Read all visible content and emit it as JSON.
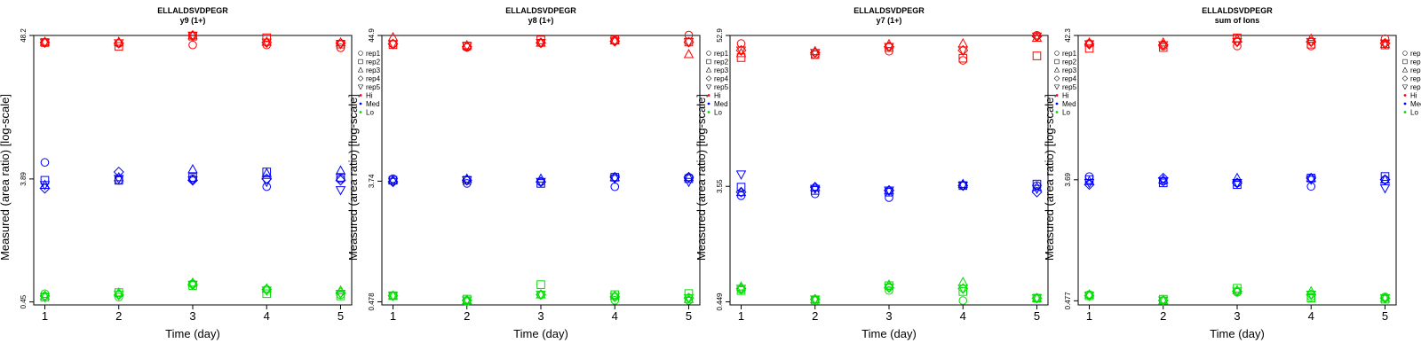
{
  "legend": {
    "replicates": [
      "rep1",
      "rep2",
      "rep3",
      "rep4",
      "rep5"
    ],
    "levels": [
      "Hi",
      "Med",
      "Lo"
    ],
    "colors": {
      "Hi": "#ff0000",
      "Med": "#0000ff",
      "Lo": "#00dd00"
    },
    "placement": "right-outside-top"
  },
  "chart_data": [
    {
      "type": "scatter",
      "title": "ELLALDSVDPEGR",
      "subtitle": "y9 (1+)",
      "xlabel": "Time (day)",
      "ylabel": "Measured (area ratio) [log-scale]",
      "log_scale": true,
      "xlim": [
        0.85,
        5.15
      ],
      "ylim": [
        0.427,
        48.2
      ],
      "xticks": [
        "1",
        "2",
        "3",
        "4",
        "5"
      ],
      "yticks": [
        {
          "value": 0.45,
          "label": "0.45"
        },
        {
          "value": 3.89,
          "label": "3.89"
        },
        {
          "value": 48.2,
          "label": "48.2"
        }
      ],
      "x": [
        1,
        2,
        3,
        4,
        5
      ],
      "series": [
        {
          "level": "Hi",
          "replicate": "rep1",
          "values": [
            42.6,
            41.9,
            40.8,
            40.8,
            38.8
          ]
        },
        {
          "level": "Hi",
          "replicate": "rep2",
          "values": [
            42.6,
            39.8,
            47.6,
            46.3,
            41.4
          ]
        },
        {
          "level": "Hi",
          "replicate": "rep3",
          "values": [
            43.1,
            43.1,
            48.2,
            43.1,
            42.6
          ]
        },
        {
          "level": "Hi",
          "replicate": "rep4",
          "values": [
            42.6,
            42.1,
            48.2,
            42.6,
            42.1
          ]
        },
        {
          "level": "Hi",
          "replicate": "rep5",
          "values": [
            42.6,
            42.1,
            48.2,
            42.6,
            41.4
          ]
        },
        {
          "level": "Med",
          "replicate": "rep1",
          "values": [
            5.2,
            3.8,
            3.9,
            3.4,
            3.9
          ]
        },
        {
          "level": "Med",
          "replicate": "rep2",
          "values": [
            3.8,
            3.8,
            4.0,
            4.4,
            4.0
          ]
        },
        {
          "level": "Med",
          "replicate": "rep3",
          "values": [
            3.5,
            4.0,
            4.6,
            4.3,
            4.5
          ]
        },
        {
          "level": "Med",
          "replicate": "rep4",
          "values": [
            3.3,
            4.4,
            3.8,
            3.9,
            3.8
          ]
        },
        {
          "level": "Med",
          "replicate": "rep5",
          "values": [
            3.5,
            3.9,
            3.8,
            3.7,
            3.2
          ]
        },
        {
          "level": "Lo",
          "replicate": "rep1",
          "values": [
            0.52,
            0.49,
            0.62,
            0.56,
            0.51
          ]
        },
        {
          "level": "Lo",
          "replicate": "rep2",
          "values": [
            0.49,
            0.53,
            0.6,
            0.52,
            0.5
          ]
        },
        {
          "level": "Lo",
          "replicate": "rep3",
          "values": [
            0.5,
            0.53,
            0.63,
            0.57,
            0.55
          ]
        },
        {
          "level": "Lo",
          "replicate": "rep4",
          "values": [
            0.5,
            0.51,
            0.61,
            0.56,
            0.53
          ]
        },
        {
          "level": "Lo",
          "replicate": "rep5",
          "values": [
            0.49,
            0.51,
            0.61,
            0.55,
            0.52
          ]
        }
      ]
    },
    {
      "type": "scatter",
      "title": "ELLALDSVDPEGR",
      "subtitle": "y8 (1+)",
      "xlabel": "Time (day)",
      "ylabel": "Measured (area ratio) [log-scale]",
      "log_scale": true,
      "xlim": [
        0.85,
        5.15
      ],
      "ylim": [
        0.453,
        44.9
      ],
      "xticks": [
        "1",
        "2",
        "3",
        "4",
        "5"
      ],
      "yticks": [
        {
          "value": 0.478,
          "label": "0.478"
        },
        {
          "value": 3.74,
          "label": "3.74"
        },
        {
          "value": 44.9,
          "label": "44.9"
        }
      ],
      "x": [
        1,
        2,
        3,
        4,
        5
      ],
      "series": [
        {
          "level": "Hi",
          "replicate": "rep1",
          "values": [
            38.8,
            36.6,
            39.6,
            41.1,
            45.2
          ]
        },
        {
          "level": "Hi",
          "replicate": "rep2",
          "values": [
            38.4,
            37.5,
            41.6,
            41.6,
            40.1
          ]
        },
        {
          "level": "Hi",
          "replicate": "rep3",
          "values": [
            43.5,
            38.0,
            39.6,
            41.1,
            32.6
          ]
        },
        {
          "level": "Hi",
          "replicate": "rep4",
          "values": [
            38.8,
            37.0,
            39.6,
            40.6,
            40.1
          ]
        },
        {
          "level": "Hi",
          "replicate": "rep5",
          "values": [
            38.8,
            37.5,
            39.6,
            40.6,
            40.1
          ]
        },
        {
          "level": "Med",
          "replicate": "rep1",
          "values": [
            3.9,
            3.6,
            3.7,
            3.4,
            4.0
          ]
        },
        {
          "level": "Med",
          "replicate": "rep2",
          "values": [
            3.8,
            3.8,
            3.6,
            4.0,
            3.9
          ]
        },
        {
          "level": "Med",
          "replicate": "rep3",
          "values": [
            3.8,
            3.9,
            3.9,
            4.0,
            4.0
          ]
        },
        {
          "level": "Med",
          "replicate": "rep4",
          "values": [
            3.7,
            3.8,
            3.7,
            4.0,
            4.0
          ]
        },
        {
          "level": "Med",
          "replicate": "rep5",
          "values": [
            3.7,
            3.8,
            3.7,
            3.9,
            3.7
          ]
        },
        {
          "level": "Lo",
          "replicate": "rep1",
          "values": [
            0.53,
            0.48,
            0.54,
            0.49,
            0.49
          ]
        },
        {
          "level": "Lo",
          "replicate": "rep2",
          "values": [
            0.53,
            0.5,
            0.64,
            0.54,
            0.55
          ]
        },
        {
          "level": "Lo",
          "replicate": "rep3",
          "values": [
            0.53,
            0.49,
            0.54,
            0.53,
            0.5
          ]
        },
        {
          "level": "Lo",
          "replicate": "rep4",
          "values": [
            0.53,
            0.49,
            0.54,
            0.52,
            0.51
          ]
        },
        {
          "level": "Lo",
          "replicate": "rep5",
          "values": [
            0.53,
            0.49,
            0.54,
            0.52,
            0.51
          ]
        }
      ]
    },
    {
      "type": "scatter",
      "title": "ELLALDSVDPEGR",
      "subtitle": "y7 (1+)",
      "xlabel": "Time (day)",
      "ylabel": "Measured (area ratio) [log-scale]",
      "log_scale": true,
      "xlim": [
        0.85,
        5.15
      ],
      "ylim": [
        0.425,
        52.9
      ],
      "xticks": [
        "1",
        "2",
        "3",
        "4",
        "5"
      ],
      "yticks": [
        {
          "value": 0.449,
          "label": "0.449"
        },
        {
          "value": 3.55,
          "label": "3.55"
        },
        {
          "value": 52.9,
          "label": "52.9"
        }
      ],
      "x": [
        1,
        2,
        3,
        4,
        5
      ],
      "series": [
        {
          "level": "Hi",
          "replicate": "rep1",
          "values": [
            45.8,
            37.5,
            39.9,
            33.9,
            53.1
          ]
        },
        {
          "level": "Hi",
          "replicate": "rep2",
          "values": [
            35.6,
            37.5,
            42.7,
            35.2,
            36.7
          ]
        },
        {
          "level": "Hi",
          "replicate": "rep3",
          "values": [
            38.5,
            39.9,
            45.2,
            45.8,
            50.7
          ]
        },
        {
          "level": "Hi",
          "replicate": "rep4",
          "values": [
            40.5,
            38.8,
            43.2,
            40.5,
            52.0
          ]
        },
        {
          "level": "Hi",
          "replicate": "rep5",
          "values": [
            40.5,
            38.8,
            43.2,
            40.5,
            52.0
          ]
        },
        {
          "level": "Med",
          "replicate": "rep1",
          "values": [
            3.0,
            3.1,
            2.9,
            3.6,
            3.6
          ]
        },
        {
          "level": "Med",
          "replicate": "rep2",
          "values": [
            3.5,
            3.3,
            3.2,
            3.6,
            3.7
          ]
        },
        {
          "level": "Med",
          "replicate": "rep3",
          "values": [
            3.2,
            3.5,
            3.3,
            3.7,
            3.5
          ]
        },
        {
          "level": "Med",
          "replicate": "rep4",
          "values": [
            3.2,
            3.5,
            3.3,
            3.6,
            3.2
          ]
        },
        {
          "level": "Med",
          "replicate": "rep5",
          "values": [
            4.4,
            3.4,
            3.3,
            3.6,
            3.4
          ]
        },
        {
          "level": "Lo",
          "replicate": "rep1",
          "values": [
            0.56,
            0.46,
            0.55,
            0.46,
            0.48
          ]
        },
        {
          "level": "Lo",
          "replicate": "rep2",
          "values": [
            0.55,
            0.46,
            0.6,
            0.54,
            0.48
          ]
        },
        {
          "level": "Lo",
          "replicate": "rep3",
          "values": [
            0.59,
            0.47,
            0.61,
            0.64,
            0.48
          ]
        },
        {
          "level": "Lo",
          "replicate": "rep4",
          "values": [
            0.57,
            0.47,
            0.58,
            0.57,
            0.48
          ]
        },
        {
          "level": "Lo",
          "replicate": "rep5",
          "values": [
            0.57,
            0.47,
            0.58,
            0.57,
            0.48
          ]
        }
      ]
    },
    {
      "type": "scatter",
      "title": "ELLALDSVDPEGR",
      "subtitle": "sum of Ions",
      "xlabel": "Time (day)",
      "ylabel": "Measured (area ratio) [log-scale]",
      "log_scale": true,
      "xlim": [
        0.85,
        5.15
      ],
      "ylim": [
        0.445,
        42.3
      ],
      "xticks": [
        "1",
        "2",
        "3",
        "4",
        "5"
      ],
      "yticks": [
        {
          "value": 0.477,
          "label": "0.477"
        },
        {
          "value": 3.69,
          "label": "3.69"
        },
        {
          "value": 42.3,
          "label": "42.3"
        }
      ],
      "x": [
        1,
        2,
        3,
        4,
        5
      ],
      "series": [
        {
          "level": "Hi",
          "replicate": "rep1",
          "values": [
            37.0,
            35.4,
            35.4,
            35.4,
            40.0
          ]
        },
        {
          "level": "Hi",
          "replicate": "rep2",
          "values": [
            34.0,
            34.5,
            40.6,
            36.5,
            36.0
          ]
        },
        {
          "level": "Hi",
          "replicate": "rep3",
          "values": [
            37.5,
            37.5,
            40.0,
            40.0,
            36.5
          ]
        },
        {
          "level": "Hi",
          "replicate": "rep4",
          "values": [
            36.5,
            36.0,
            38.0,
            38.0,
            37.0
          ]
        },
        {
          "level": "Hi",
          "replicate": "rep5",
          "values": [
            36.5,
            36.0,
            38.0,
            38.0,
            37.0
          ]
        },
        {
          "level": "Med",
          "replicate": "rep1",
          "values": [
            3.9,
            3.6,
            3.5,
            3.3,
            3.7
          ]
        },
        {
          "level": "Med",
          "replicate": "rep2",
          "values": [
            3.7,
            3.5,
            3.4,
            3.8,
            3.9
          ]
        },
        {
          "level": "Med",
          "replicate": "rep3",
          "values": [
            3.6,
            3.7,
            3.8,
            3.8,
            3.7
          ]
        },
        {
          "level": "Med",
          "replicate": "rep4",
          "values": [
            3.4,
            3.8,
            3.5,
            3.8,
            3.7
          ]
        },
        {
          "level": "Med",
          "replicate": "rep5",
          "values": [
            3.5,
            3.6,
            3.5,
            3.7,
            3.2
          ]
        },
        {
          "level": "Lo",
          "replicate": "rep1",
          "values": [
            0.53,
            0.48,
            0.55,
            0.51,
            0.51
          ]
        },
        {
          "level": "Lo",
          "replicate": "rep2",
          "values": [
            0.52,
            0.49,
            0.59,
            0.5,
            0.49
          ]
        },
        {
          "level": "Lo",
          "replicate": "rep3",
          "values": [
            0.53,
            0.48,
            0.57,
            0.56,
            0.5
          ]
        },
        {
          "level": "Lo",
          "replicate": "rep4",
          "values": [
            0.52,
            0.48,
            0.56,
            0.53,
            0.5
          ]
        },
        {
          "level": "Lo",
          "replicate": "rep5",
          "values": [
            0.52,
            0.48,
            0.56,
            0.53,
            0.5
          ]
        }
      ]
    }
  ]
}
